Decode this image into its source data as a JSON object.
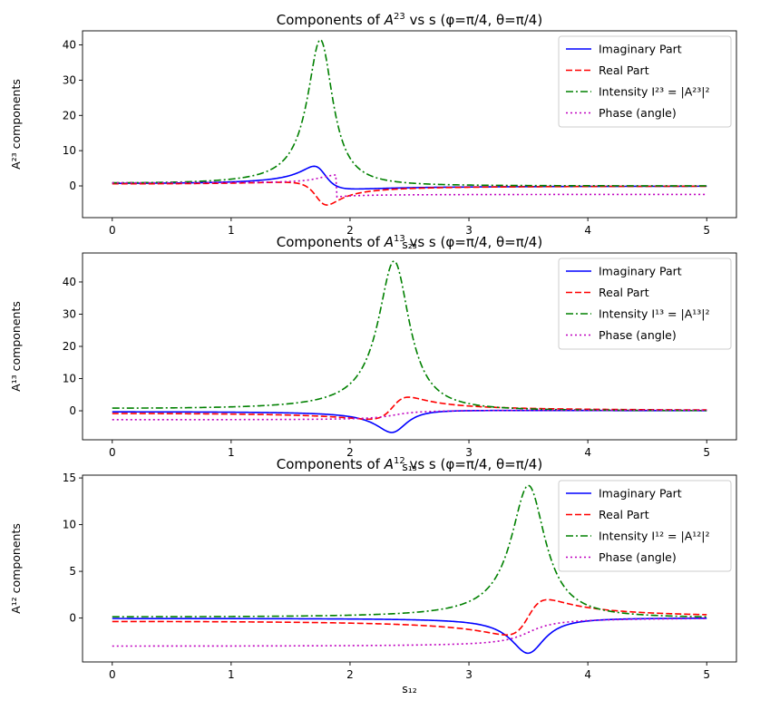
{
  "chart_data": [
    {
      "type": "line",
      "title_prefix": "Components of ",
      "title_symbol": "A",
      "title_superscript": "23",
      "title_suffix": " vs s (φ=π/4, θ=π/4)",
      "xlabel": "s₂₃",
      "ylabel": "A²³ components",
      "xlim": [
        -0.25,
        5.25
      ],
      "ylim": [
        -9,
        44
      ],
      "xticks": [
        "0",
        "1",
        "2",
        "3",
        "4",
        "5"
      ],
      "yticks": [
        "0",
        "10",
        "20",
        "30",
        "40"
      ],
      "legend_position": "top-right",
      "legend": [
        "Imaginary Part",
        "Real Part",
        "Intensity I²³ = |A²³|²",
        "Phase (angle)"
      ],
      "resonance": {
        "mass": 1.75,
        "width": 0.26,
        "peak_intensity": 41.5,
        "phase_offset": 0.75
      },
      "series": [
        {
          "name": "Imaginary Part",
          "color": "#0000ff",
          "style": "solid",
          "x": [
            0,
            1,
            1.5,
            1.6,
            1.65,
            1.7,
            1.75,
            1.8,
            1.85,
            1.9,
            2.0,
            2.5,
            3,
            4,
            5
          ],
          "values": [
            0.2,
            0.9,
            3.0,
            4.3,
            4.6,
            3.9,
            1.5,
            -1.0,
            -2.0,
            -2.0,
            -1.7,
            -0.9,
            -0.6,
            -0.4,
            -0.3
          ]
        },
        {
          "name": "Real Part",
          "color": "#ff0000",
          "style": "dashed",
          "x": [
            0,
            1,
            1.5,
            1.6,
            1.65,
            1.7,
            1.75,
            1.8,
            1.85,
            1.9,
            2.0,
            2.5,
            3,
            4,
            5
          ],
          "values": [
            0.2,
            0.5,
            0.2,
            -0.8,
            -2.2,
            -4.3,
            -5.9,
            -5.5,
            -4.4,
            -3.5,
            -2.4,
            -1.2,
            -0.8,
            -0.5,
            -0.3
          ]
        },
        {
          "name": "Intensity",
          "color": "#008000",
          "style": "dashdot",
          "x": [
            0,
            1,
            1.5,
            1.6,
            1.65,
            1.7,
            1.75,
            1.8,
            1.85,
            1.9,
            2.0,
            2.5,
            3,
            4,
            5
          ],
          "values": [
            0.1,
            1.0,
            7.5,
            15.5,
            24.0,
            35.0,
            41.5,
            35.0,
            24.0,
            15.5,
            7.5,
            1.3,
            0.4,
            0.1,
            0.05
          ]
        },
        {
          "name": "Phase (angle)",
          "color": "#bf00bf",
          "style": "dotted",
          "x": [
            0,
            1,
            1.5,
            1.6,
            1.7,
            1.75,
            1.8,
            1.82,
            1.85,
            2.0,
            3,
            4,
            5
          ],
          "values": [
            1.0,
            1.1,
            1.4,
            1.8,
            2.5,
            2.8,
            3.1,
            -2.5,
            -2.4,
            -2.2,
            -2.2,
            -2.2,
            -2.2
          ]
        }
      ]
    },
    {
      "type": "line",
      "title_prefix": "Components of ",
      "title_symbol": "A",
      "title_superscript": "13",
      "title_suffix": " vs s (φ=π/4, θ=π/4)",
      "xlabel": "s₁₃",
      "ylabel": "A¹³ components",
      "xlim": [
        -0.25,
        5.25
      ],
      "ylim": [
        -9,
        49
      ],
      "xticks": [
        "0",
        "1",
        "2",
        "3",
        "4",
        "5"
      ],
      "yticks": [
        "0",
        "10",
        "20",
        "30",
        "40"
      ],
      "legend_position": "top-right",
      "legend": [
        "Imaginary Part",
        "Real Part",
        "Intensity I¹³ = |A¹³|²",
        "Phase (angle)"
      ],
      "resonance": {
        "mass": 2.37,
        "width": 0.32,
        "peak_intensity": 46.5,
        "phase_offset": -2.9
      },
      "series": [
        {
          "name": "Imaginary Part",
          "color": "#0000ff",
          "style": "solid",
          "x": [
            0,
            1,
            2,
            2.2,
            2.3,
            2.37,
            2.45,
            2.5,
            2.6,
            3,
            4,
            5
          ],
          "values": [
            -0.3,
            -0.6,
            -2.0,
            -3.5,
            -5.5,
            -6.8,
            -5.5,
            -4.0,
            -2.5,
            -0.8,
            -0.2,
            -0.1
          ]
        },
        {
          "name": "Real Part",
          "color": "#ff0000",
          "style": "dashed",
          "x": [
            0,
            1,
            2,
            2.2,
            2.3,
            2.37,
            2.45,
            2.5,
            2.6,
            3,
            4,
            5
          ],
          "values": [
            -0.3,
            -1.2,
            -2.3,
            -2.0,
            -1.0,
            0.5,
            2.5,
            3.8,
            4.0,
            2.5,
            0.8,
            0.3
          ]
        },
        {
          "name": "Intensity",
          "color": "#008000",
          "style": "dashdot",
          "x": [
            0,
            1,
            2,
            2.2,
            2.3,
            2.37,
            2.45,
            2.6,
            3,
            4,
            5
          ],
          "values": [
            0.2,
            0.6,
            6.0,
            21.0,
            37.0,
            46.5,
            37.0,
            16.0,
            3.0,
            0.8,
            0.3
          ]
        },
        {
          "name": "Phase (angle)",
          "color": "#bf00bf",
          "style": "dotted",
          "x": [
            0,
            1,
            2,
            2.3,
            2.5,
            2.7,
            3,
            4,
            5
          ],
          "values": [
            -2.9,
            -2.8,
            -2.5,
            -1.7,
            -0.7,
            -0.2,
            0.0,
            0.1,
            0.2
          ]
        }
      ]
    },
    {
      "type": "line",
      "title_prefix": "Components of ",
      "title_symbol": "A",
      "title_superscript": "12",
      "title_suffix": " vs s (φ=π/4, θ=π/4)",
      "xlabel": "s₁₂",
      "ylabel": "A¹² components",
      "xlim": [
        -0.25,
        5.25
      ],
      "ylim": [
        -4.7,
        15.3
      ],
      "xticks": [
        "0",
        "1",
        "2",
        "3",
        "4",
        "5"
      ],
      "yticks": [
        "0",
        "5",
        "10",
        "15"
      ],
      "legend_position": "top-right",
      "legend": [
        "Imaginary Part",
        "Real Part",
        "Intensity I¹² = |A¹²|²",
        "Phase (angle)"
      ],
      "resonance": {
        "mass": 3.5,
        "width": 0.35,
        "peak_intensity": 14.2,
        "phase_offset": -3.1
      },
      "series": [
        {
          "name": "Imaginary Part",
          "color": "#0000ff",
          "style": "solid",
          "x": [
            0,
            1,
            2,
            3,
            3.3,
            3.4,
            3.5,
            3.6,
            3.7,
            4,
            5
          ],
          "values": [
            -0.05,
            -0.1,
            -0.15,
            -0.5,
            -1.5,
            -2.6,
            -3.8,
            -3.3,
            -2.0,
            -0.5,
            -0.1
          ]
        },
        {
          "name": "Real Part",
          "color": "#ff0000",
          "style": "dashed",
          "x": [
            0,
            1,
            2,
            3,
            3.3,
            3.4,
            3.5,
            3.6,
            3.7,
            4,
            5
          ],
          "values": [
            -0.2,
            -0.35,
            -0.5,
            -1.0,
            -1.9,
            -1.5,
            0.0,
            1.3,
            1.9,
            1.5,
            0.4
          ]
        },
        {
          "name": "Intensity",
          "color": "#008000",
          "style": "dashdot",
          "x": [
            0,
            1,
            2,
            3,
            3.3,
            3.4,
            3.5,
            3.6,
            3.7,
            4,
            5
          ],
          "values": [
            0.05,
            0.1,
            0.3,
            1.3,
            5.0,
            9.8,
            14.2,
            11.0,
            6.0,
            1.8,
            0.3
          ]
        },
        {
          "name": "Phase (angle)",
          "color": "#bf00bf",
          "style": "dotted",
          "x": [
            0,
            1,
            2,
            3,
            3.3,
            3.5,
            3.7,
            4,
            5
          ],
          "values": [
            -3.1,
            -3.05,
            -3.0,
            -2.75,
            -2.2,
            -1.6,
            -0.9,
            -0.4,
            -0.1
          ]
        }
      ]
    }
  ]
}
